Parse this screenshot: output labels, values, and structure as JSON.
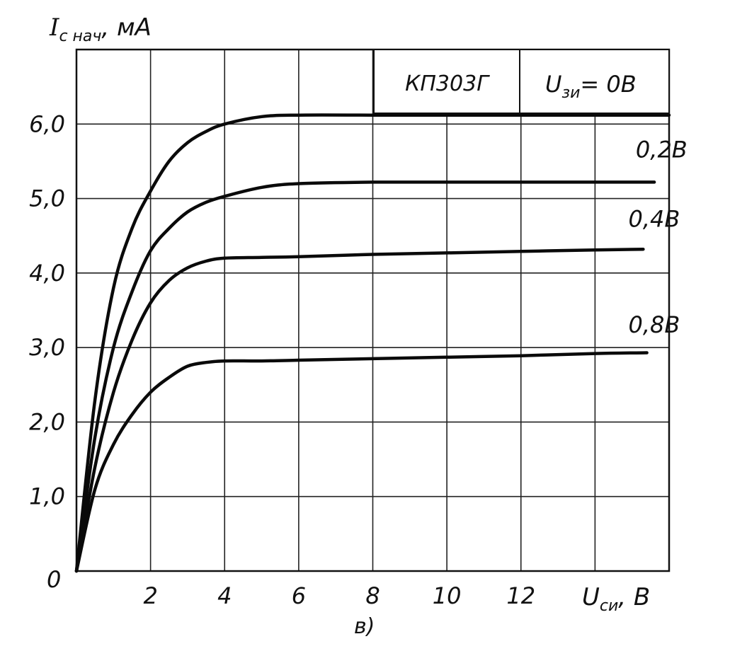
{
  "chart_data": {
    "type": "line",
    "title": "КП303Г",
    "caption": "в)",
    "ylabel": {
      "main": "I",
      "sub": "с нач",
      "unit": ", мА"
    },
    "xlabel": {
      "main": "U",
      "sub": "си",
      "unit": ", В"
    },
    "legend_title": {
      "main": "U",
      "sub": "зи",
      "unit": "= 0В"
    },
    "xlim": [
      0,
      16
    ],
    "ylim": [
      0,
      7
    ],
    "origin_label": "0",
    "x_ticks": [
      {
        "value": 2,
        "label": "2"
      },
      {
        "value": 4,
        "label": "4"
      },
      {
        "value": 6,
        "label": "6"
      },
      {
        "value": 8,
        "label": "8"
      },
      {
        "value": 10,
        "label": "10"
      },
      {
        "value": 12,
        "label": "12"
      }
    ],
    "y_ticks": [
      {
        "value": 1,
        "label": "1,0"
      },
      {
        "value": 2,
        "label": "2,0"
      },
      {
        "value": 3,
        "label": "3,0"
      },
      {
        "value": 4,
        "label": "4,0"
      },
      {
        "value": 5,
        "label": "5,0"
      },
      {
        "value": 6,
        "label": "6,0"
      }
    ],
    "grid": true,
    "series": [
      {
        "name": "0",
        "x": [
          0,
          0.5,
          1,
          1.5,
          2,
          2.5,
          3,
          3.5,
          4,
          5,
          6,
          8,
          10,
          12,
          14,
          16
        ],
        "y": [
          0,
          2.3,
          3.8,
          4.6,
          5.1,
          5.5,
          5.75,
          5.9,
          6.0,
          6.1,
          6.12,
          6.12,
          6.12,
          6.12,
          6.12,
          6.12
        ]
      },
      {
        "name": "0,2В",
        "label": "0,2В",
        "x": [
          0,
          0.5,
          1,
          1.5,
          2,
          2.5,
          3,
          3.5,
          4,
          5,
          6,
          8,
          10,
          12,
          14,
          15.6
        ],
        "y": [
          0,
          1.8,
          3.0,
          3.75,
          4.3,
          4.6,
          4.82,
          4.95,
          5.03,
          5.15,
          5.2,
          5.22,
          5.22,
          5.22,
          5.22,
          5.22
        ]
      },
      {
        "name": "0,4В",
        "label": "0,4В",
        "x": [
          0,
          0.5,
          1,
          1.5,
          2,
          2.5,
          3,
          3.5,
          4,
          5,
          6,
          8,
          10,
          12,
          14,
          15.3
        ],
        "y": [
          0,
          1.4,
          2.4,
          3.1,
          3.6,
          3.9,
          4.07,
          4.16,
          4.2,
          4.21,
          4.22,
          4.25,
          4.27,
          4.29,
          4.31,
          4.32
        ]
      },
      {
        "name": "0,8В",
        "label": "0,8В",
        "x": [
          0,
          0.5,
          1,
          1.5,
          2,
          2.5,
          3,
          3.5,
          4,
          5,
          6,
          8,
          10,
          12,
          14,
          15.4
        ],
        "y": [
          0,
          1.1,
          1.7,
          2.1,
          2.4,
          2.6,
          2.75,
          2.8,
          2.82,
          2.82,
          2.83,
          2.85,
          2.87,
          2.89,
          2.92,
          2.93
        ]
      }
    ]
  }
}
